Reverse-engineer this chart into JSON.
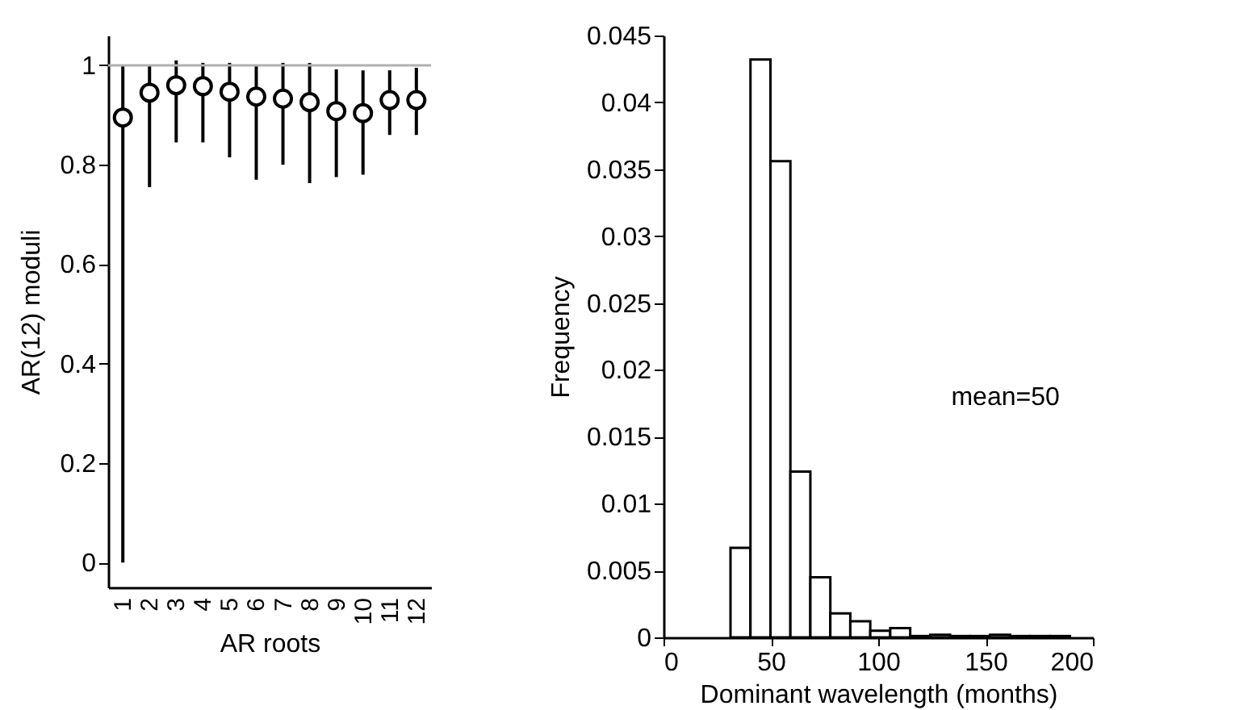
{
  "chart_data": [
    {
      "type": "scatter",
      "xlabel": "AR roots",
      "ylabel": "AR(12) moduli",
      "categories": [
        "1",
        "2",
        "3",
        "4",
        "5",
        "6",
        "7",
        "8",
        "9",
        "10",
        "11",
        "12"
      ],
      "values": [
        0.895,
        0.945,
        0.96,
        0.958,
        0.947,
        0.937,
        0.933,
        0.926,
        0.908,
        0.904,
        0.93,
        0.93
      ],
      "errors": [
        [
          0,
          1.0
        ],
        [
          0.755,
          1.0
        ],
        [
          0.845,
          1.01
        ],
        [
          0.845,
          1.005
        ],
        [
          0.815,
          1.005
        ],
        [
          0.77,
          1.0
        ],
        [
          0.8,
          1.005
        ],
        [
          0.763,
          1.005
        ],
        [
          0.775,
          0.992
        ],
        [
          0.78,
          0.99
        ],
        [
          0.86,
          0.99
        ],
        [
          0.86,
          0.995
        ]
      ],
      "color": "#000000",
      "marker": "circle",
      "ylim": [
        -0.05,
        1.06
      ],
      "yticks": [
        0,
        0.2,
        0.4,
        0.6,
        0.8,
        1
      ],
      "ref_lines": [
        {
          "axis": "y",
          "value": 1,
          "color": "#b0b0b0"
        }
      ],
      "grid": false
    },
    {
      "type": "histogram",
      "xlabel": "Dominant wavelength (months)",
      "ylabel": "Frequency",
      "bins": [
        31.2,
        40.5,
        49.8,
        59.1,
        68.4,
        77.7,
        87,
        96.3,
        105.6,
        114.9,
        124.2,
        133.5,
        142.8,
        152.1,
        161.4,
        170.7,
        180,
        189.3
      ],
      "values": [
        0.0067,
        0.0432,
        0.0356,
        0.0124,
        0.0045,
        0.0018,
        0.0012,
        0.0005,
        0.0007,
        0.0001,
        0.0002,
        0.0001,
        0.0001,
        0.0002,
        0.0001,
        0.0001,
        0.0001
      ],
      "color": "#ffffff",
      "xlim": [
        0,
        200
      ],
      "xticks": [
        0,
        50,
        100,
        150,
        200
      ],
      "ylim": [
        0,
        0.045
      ],
      "yticks": [
        {
          "value": 0,
          "label": "0"
        },
        0.005,
        0.01,
        0.015,
        0.02,
        0.025,
        0.03,
        0.035,
        0.04,
        0.045
      ],
      "annotations": [
        "mean=50"
      ],
      "grid": false
    }
  ]
}
